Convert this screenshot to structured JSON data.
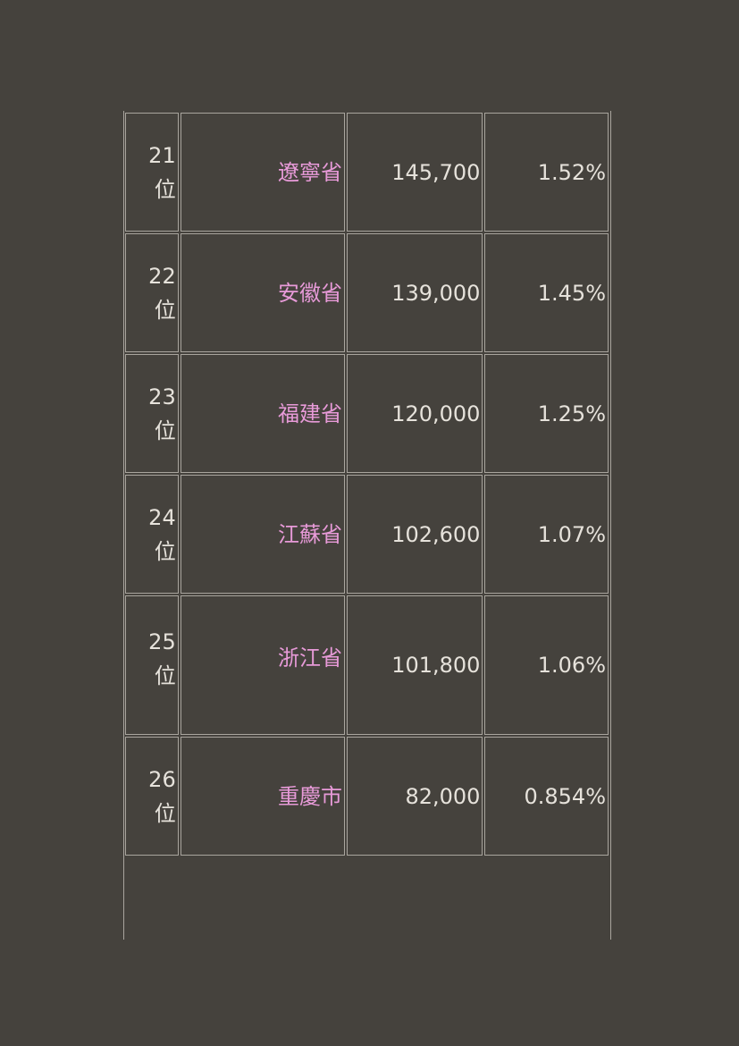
{
  "table": {
    "rows": [
      {
        "rank": "21",
        "rank_unit": "位",
        "region": "遼寧省",
        "value": "145,700",
        "share": "1.52%"
      },
      {
        "rank": "22",
        "rank_unit": "位",
        "region": "安徽省",
        "value": "139,000",
        "share": "1.45%"
      },
      {
        "rank": "23",
        "rank_unit": "位",
        "region": "福建省",
        "value": "120,000",
        "share": "1.25%"
      },
      {
        "rank": "24",
        "rank_unit": "位",
        "region": "江蘇省",
        "value": "102,600",
        "share": "1.07%"
      },
      {
        "rank": "25",
        "rank_unit": "位",
        "region": "浙江省",
        "value": "101,800",
        "share": "1.06%"
      },
      {
        "rank": "26",
        "rank_unit": "位",
        "region": "重慶市",
        "value": "82,000",
        "share": "0.854%"
      }
    ]
  },
  "colors": {
    "background": "#45423d",
    "text": "#e6e2db",
    "region_text": "#e79ad8",
    "border": "#a9a59e"
  }
}
